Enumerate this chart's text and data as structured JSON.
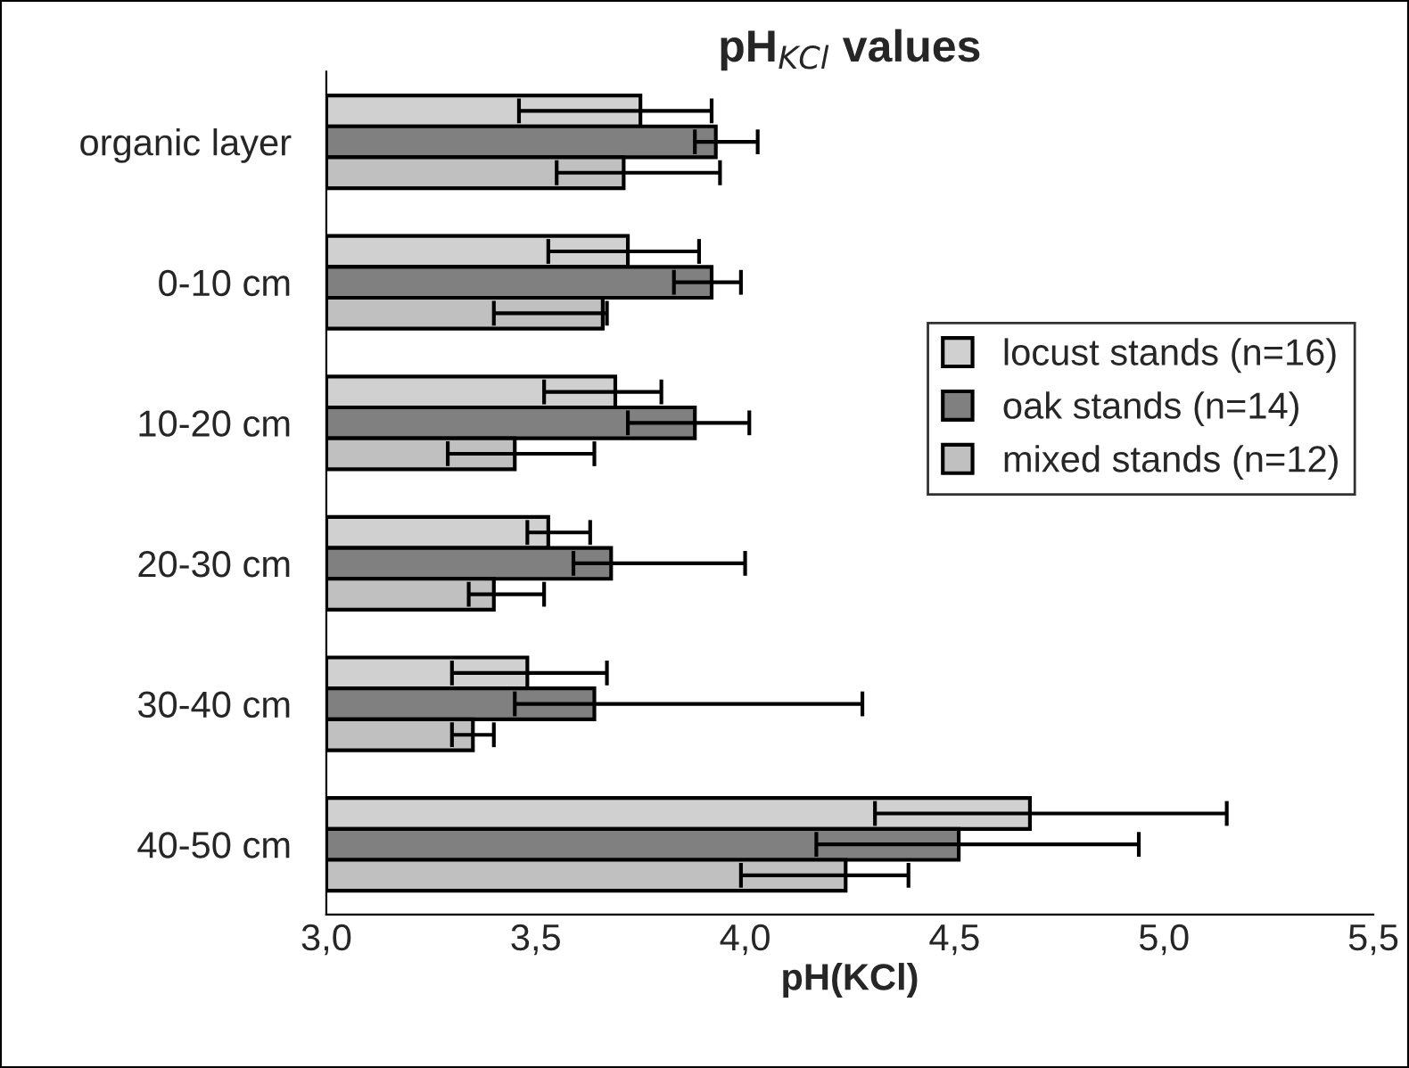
{
  "chart_data": {
    "type": "bar",
    "orientation": "horizontal",
    "title": "pH$_{KCl}$ values",
    "xlabel": "pH(KCl)",
    "categories": [
      "organic layer",
      "0-10 cm",
      "10-20 cm",
      "20-30 cm",
      "30-40 cm",
      "40-50 cm"
    ],
    "series": [
      {
        "name": "locust stands (n=16)",
        "color": "#d0d0d0",
        "values": [
          3.75,
          3.72,
          3.69,
          3.53,
          3.48,
          4.68
        ],
        "errors": [
          [
            3.46,
            3.92
          ],
          [
            3.53,
            3.89
          ],
          [
            3.52,
            3.8
          ],
          [
            3.48,
            3.63
          ],
          [
            3.3,
            3.67
          ],
          [
            4.31,
            5.15
          ]
        ]
      },
      {
        "name": "oak stands (n=14)",
        "color": "#808080",
        "values": [
          3.93,
          3.92,
          3.88,
          3.68,
          3.64,
          4.51
        ],
        "errors": [
          [
            3.88,
            4.03
          ],
          [
            3.83,
            3.99
          ],
          [
            3.72,
            4.01
          ],
          [
            3.59,
            4.0
          ],
          [
            3.45,
            4.28
          ],
          [
            4.17,
            4.94
          ]
        ]
      },
      {
        "name": "mixed stands (n=12)",
        "color": "#c0c0c0",
        "values": [
          3.71,
          3.66,
          3.45,
          3.4,
          3.35,
          4.24
        ],
        "errors": [
          [
            3.55,
            3.94
          ],
          [
            3.4,
            3.67
          ],
          [
            3.29,
            3.64
          ],
          [
            3.34,
            3.52
          ],
          [
            3.3,
            3.4
          ],
          [
            3.99,
            4.39
          ]
        ]
      }
    ],
    "xlim": [
      3.0,
      5.5
    ],
    "xticks": [
      {
        "value": 3.0,
        "label": "3,0"
      },
      {
        "value": 3.5,
        "label": "3,5"
      },
      {
        "value": 4.0,
        "label": "4,0"
      },
      {
        "value": 4.5,
        "label": "4,5"
      },
      {
        "value": 5.0,
        "label": "5,0"
      },
      {
        "value": 5.5,
        "label": "5,5"
      }
    ],
    "grid": false,
    "legend": "right"
  }
}
